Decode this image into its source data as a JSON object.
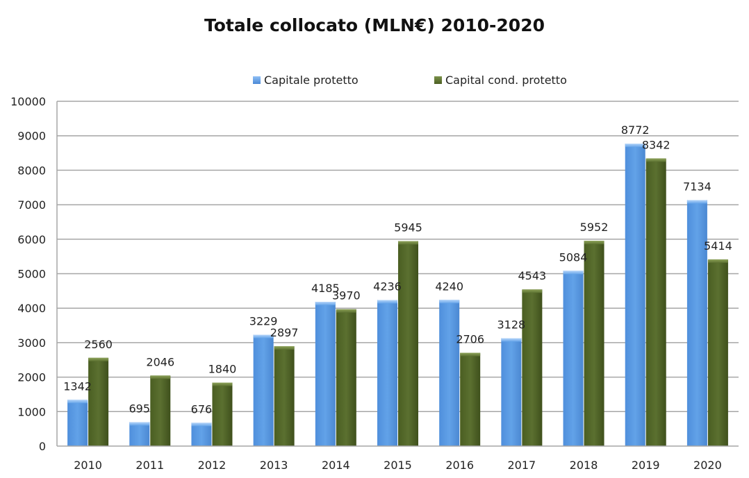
{
  "chart_data": {
    "type": "bar",
    "title": "Totale collocato (MLN€) 2010-2020",
    "xlabel": "",
    "ylabel": "",
    "ylim": [
      0,
      10000
    ],
    "yticks": [
      0,
      1000,
      2000,
      3000,
      4000,
      5000,
      6000,
      7000,
      8000,
      9000,
      10000
    ],
    "grid": true,
    "legend_position": "top",
    "categories": [
      "2010",
      "2011",
      "2012",
      "2013",
      "2014",
      "2015",
      "2016",
      "2017",
      "2018",
      "2019",
      "2020"
    ],
    "series": [
      {
        "name": "Capitale protetto",
        "color": "#5b9be0",
        "values": [
          1342,
          695,
          676,
          3229,
          4185,
          4236,
          4240,
          3128,
          5084,
          8772,
          7134
        ]
      },
      {
        "name": "Capital cond. protetto",
        "color": "#566b2a",
        "values": [
          2560,
          2046,
          1840,
          2897,
          3970,
          5945,
          2706,
          4543,
          5952,
          8342,
          5414
        ]
      }
    ]
  }
}
